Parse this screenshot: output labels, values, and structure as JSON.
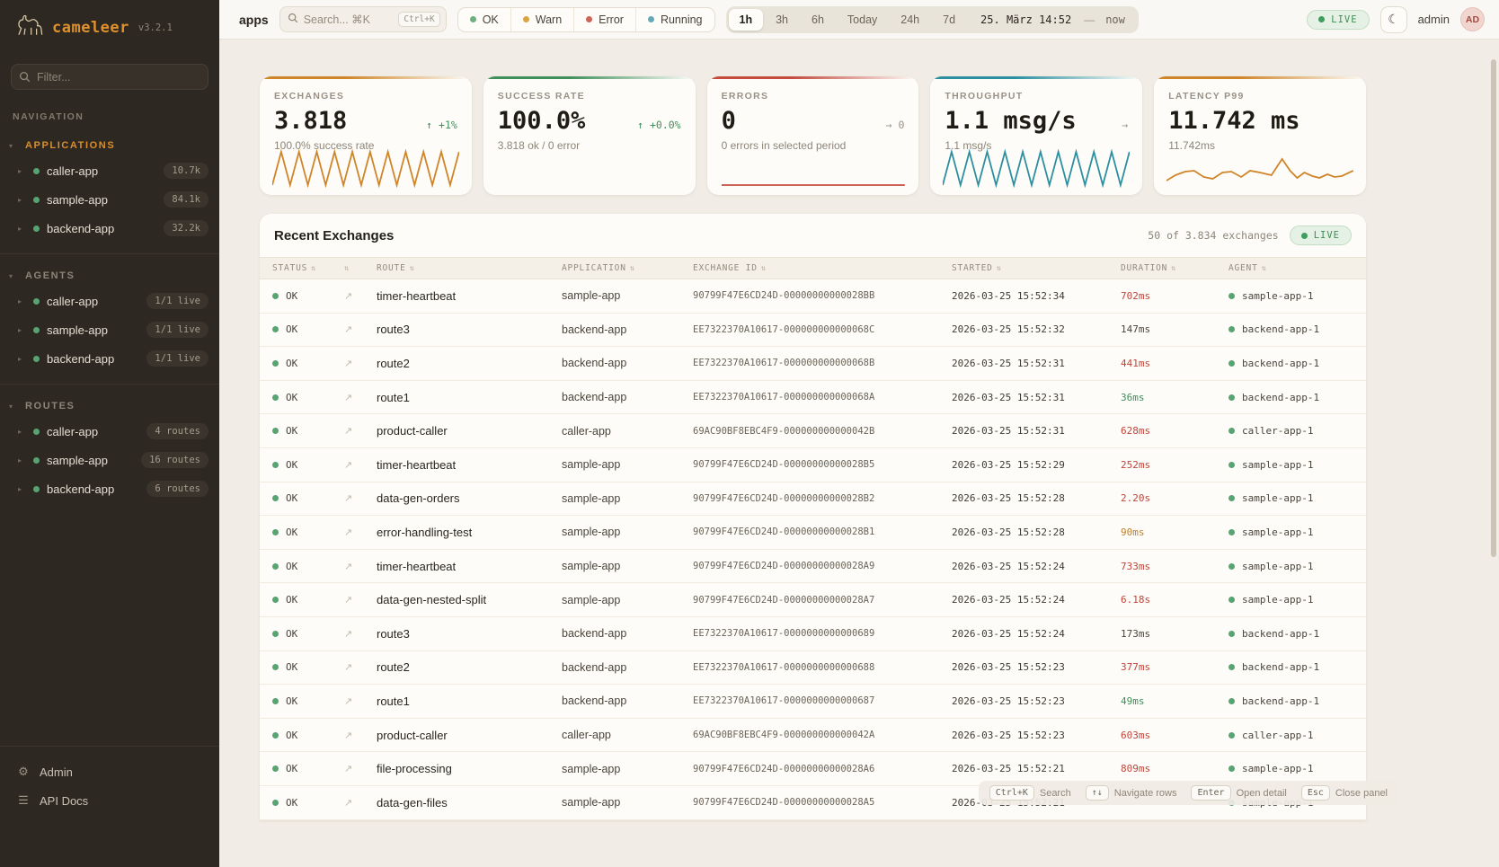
{
  "brand": {
    "name": "cameleer",
    "version": "v3.2.1"
  },
  "sidebar": {
    "filter_placeholder": "Filter...",
    "nav_label": "NAVIGATION",
    "sections": [
      {
        "title": "APPLICATIONS",
        "active": true,
        "items": [
          {
            "name": "caller-app",
            "badge": "10.7k"
          },
          {
            "name": "sample-app",
            "badge": "84.1k"
          },
          {
            "name": "backend-app",
            "badge": "32.2k"
          }
        ]
      },
      {
        "title": "AGENTS",
        "active": false,
        "items": [
          {
            "name": "caller-app",
            "badge": "1/1 live"
          },
          {
            "name": "sample-app",
            "badge": "1/1 live"
          },
          {
            "name": "backend-app",
            "badge": "1/1 live"
          }
        ]
      },
      {
        "title": "ROUTES",
        "active": false,
        "items": [
          {
            "name": "caller-app",
            "badge": "4 routes"
          },
          {
            "name": "sample-app",
            "badge": "16 routes"
          },
          {
            "name": "backend-app",
            "badge": "6 routes"
          }
        ]
      }
    ],
    "footer": [
      {
        "label": "Admin",
        "icon": "gear-icon",
        "glyph": "⚙"
      },
      {
        "label": "API Docs",
        "icon": "docs-icon",
        "glyph": "☰"
      }
    ]
  },
  "topbar": {
    "context": "apps",
    "search_placeholder": "Search... ⌘K",
    "search_kbd": "Ctrl+K",
    "status_filters": [
      {
        "label": "OK",
        "color": "#6fae7e"
      },
      {
        "label": "Warn",
        "color": "#d9a441"
      },
      {
        "label": "Error",
        "color": "#cd6457"
      },
      {
        "label": "Running",
        "color": "#62aab8"
      }
    ],
    "ranges": [
      "1h",
      "3h",
      "6h",
      "Today",
      "24h",
      "7d"
    ],
    "active_range": "1h",
    "date_label": "25. März 14:52",
    "date_sep": "—",
    "date_end": "now",
    "live_label": "LIVE",
    "user": "admin",
    "avatar_initials": "AD"
  },
  "stats": [
    {
      "label": "EXCHANGES",
      "value": "3.818",
      "delta": "↑ +1%",
      "delta_color": "#3f8f5a",
      "sub": "100.0% success rate",
      "accent": "#cf8527",
      "spark": "zigzag"
    },
    {
      "label": "SUCCESS RATE",
      "value": "100.0%",
      "delta": "↑ +0.0%",
      "delta_color": "#3f8f5a",
      "sub": "3.818 ok / 0 error",
      "accent": "#3f8f5a",
      "spark": "none"
    },
    {
      "label": "ERRORS",
      "value": "0",
      "delta": "→ 0",
      "delta_color": "#9a9186",
      "sub": "0 errors in selected period",
      "accent": "#c44b3e",
      "spark": "flat"
    },
    {
      "label": "THROUGHPUT",
      "value": "1.1 msg/s",
      "delta": "→",
      "delta_color": "#9a9186",
      "sub": "1.1 msg/s",
      "accent": "#2b8fa0",
      "spark": "zigzag"
    },
    {
      "label": "LATENCY P99",
      "value": "11.742 ms",
      "delta": "",
      "delta_color": "#9a9186",
      "sub": "11.742ms",
      "accent": "#cf8527",
      "spark": "line"
    }
  ],
  "table": {
    "title": "Recent Exchanges",
    "meta": "50 of 3.834 exchanges",
    "live_label": "LIVE",
    "columns": [
      "STATUS",
      "",
      "ROUTE",
      "APPLICATION",
      "EXCHANGE ID",
      "STARTED",
      "DURATION",
      "AGENT"
    ],
    "duration_colors": {
      "red": "#c0453a",
      "amber": "#bf7f2a",
      "green": "#3f8f5a",
      "normal": "#4a443b"
    },
    "rows": [
      {
        "status": "OK",
        "route": "timer-heartbeat",
        "app": "sample-app",
        "id": "90799F47E6CD24D-00000000000028BB",
        "started": "2026-03-25 15:52:34",
        "duration": "702ms",
        "dcolor": "red",
        "agent": "sample-app-1"
      },
      {
        "status": "OK",
        "route": "route3",
        "app": "backend-app",
        "id": "EE7322370A10617-000000000000068C",
        "started": "2026-03-25 15:52:32",
        "duration": "147ms",
        "dcolor": "normal",
        "agent": "backend-app-1"
      },
      {
        "status": "OK",
        "route": "route2",
        "app": "backend-app",
        "id": "EE7322370A10617-000000000000068B",
        "started": "2026-03-25 15:52:31",
        "duration": "441ms",
        "dcolor": "red",
        "agent": "backend-app-1"
      },
      {
        "status": "OK",
        "route": "route1",
        "app": "backend-app",
        "id": "EE7322370A10617-000000000000068A",
        "started": "2026-03-25 15:52:31",
        "duration": "36ms",
        "dcolor": "green",
        "agent": "backend-app-1"
      },
      {
        "status": "OK",
        "route": "product-caller",
        "app": "caller-app",
        "id": "69AC90BF8EBC4F9-000000000000042B",
        "started": "2026-03-25 15:52:31",
        "duration": "628ms",
        "dcolor": "red",
        "agent": "caller-app-1"
      },
      {
        "status": "OK",
        "route": "timer-heartbeat",
        "app": "sample-app",
        "id": "90799F47E6CD24D-00000000000028B5",
        "started": "2026-03-25 15:52:29",
        "duration": "252ms",
        "dcolor": "red",
        "agent": "sample-app-1"
      },
      {
        "status": "OK",
        "route": "data-gen-orders",
        "app": "sample-app",
        "id": "90799F47E6CD24D-00000000000028B2",
        "started": "2026-03-25 15:52:28",
        "duration": "2.20s",
        "dcolor": "red",
        "agent": "sample-app-1"
      },
      {
        "status": "OK",
        "route": "error-handling-test",
        "app": "sample-app",
        "id": "90799F47E6CD24D-00000000000028B1",
        "started": "2026-03-25 15:52:28",
        "duration": "90ms",
        "dcolor": "amber",
        "agent": "sample-app-1"
      },
      {
        "status": "OK",
        "route": "timer-heartbeat",
        "app": "sample-app",
        "id": "90799F47E6CD24D-00000000000028A9",
        "started": "2026-03-25 15:52:24",
        "duration": "733ms",
        "dcolor": "red",
        "agent": "sample-app-1"
      },
      {
        "status": "OK",
        "route": "data-gen-nested-split",
        "app": "sample-app",
        "id": "90799F47E6CD24D-00000000000028A7",
        "started": "2026-03-25 15:52:24",
        "duration": "6.18s",
        "dcolor": "red",
        "agent": "sample-app-1"
      },
      {
        "status": "OK",
        "route": "route3",
        "app": "backend-app",
        "id": "EE7322370A10617-0000000000000689",
        "started": "2026-03-25 15:52:24",
        "duration": "173ms",
        "dcolor": "normal",
        "agent": "backend-app-1"
      },
      {
        "status": "OK",
        "route": "route2",
        "app": "backend-app",
        "id": "EE7322370A10617-0000000000000688",
        "started": "2026-03-25 15:52:23",
        "duration": "377ms",
        "dcolor": "red",
        "agent": "backend-app-1"
      },
      {
        "status": "OK",
        "route": "route1",
        "app": "backend-app",
        "id": "EE7322370A10617-0000000000000687",
        "started": "2026-03-25 15:52:23",
        "duration": "49ms",
        "dcolor": "green",
        "agent": "backend-app-1"
      },
      {
        "status": "OK",
        "route": "product-caller",
        "app": "caller-app",
        "id": "69AC90BF8EBC4F9-000000000000042A",
        "started": "2026-03-25 15:52:23",
        "duration": "603ms",
        "dcolor": "red",
        "agent": "caller-app-1"
      },
      {
        "status": "OK",
        "route": "file-processing",
        "app": "sample-app",
        "id": "90799F47E6CD24D-00000000000028A6",
        "started": "2026-03-25 15:52:21",
        "duration": "809ms",
        "dcolor": "red",
        "agent": "sample-app-1"
      },
      {
        "status": "OK",
        "route": "data-gen-files",
        "app": "sample-app",
        "id": "90799F47E6CD24D-00000000000028A5",
        "started": "2026-03-25 15:52:21",
        "duration": "",
        "dcolor": "normal",
        "agent": "sample-app-1"
      }
    ]
  },
  "shortcuts": [
    {
      "kbd": "Ctrl+K",
      "label": "Search"
    },
    {
      "kbd": "↑↓",
      "label": "Navigate rows"
    },
    {
      "kbd": "Enter",
      "label": "Open detail"
    },
    {
      "kbd": "Esc",
      "label": "Close panel"
    }
  ]
}
